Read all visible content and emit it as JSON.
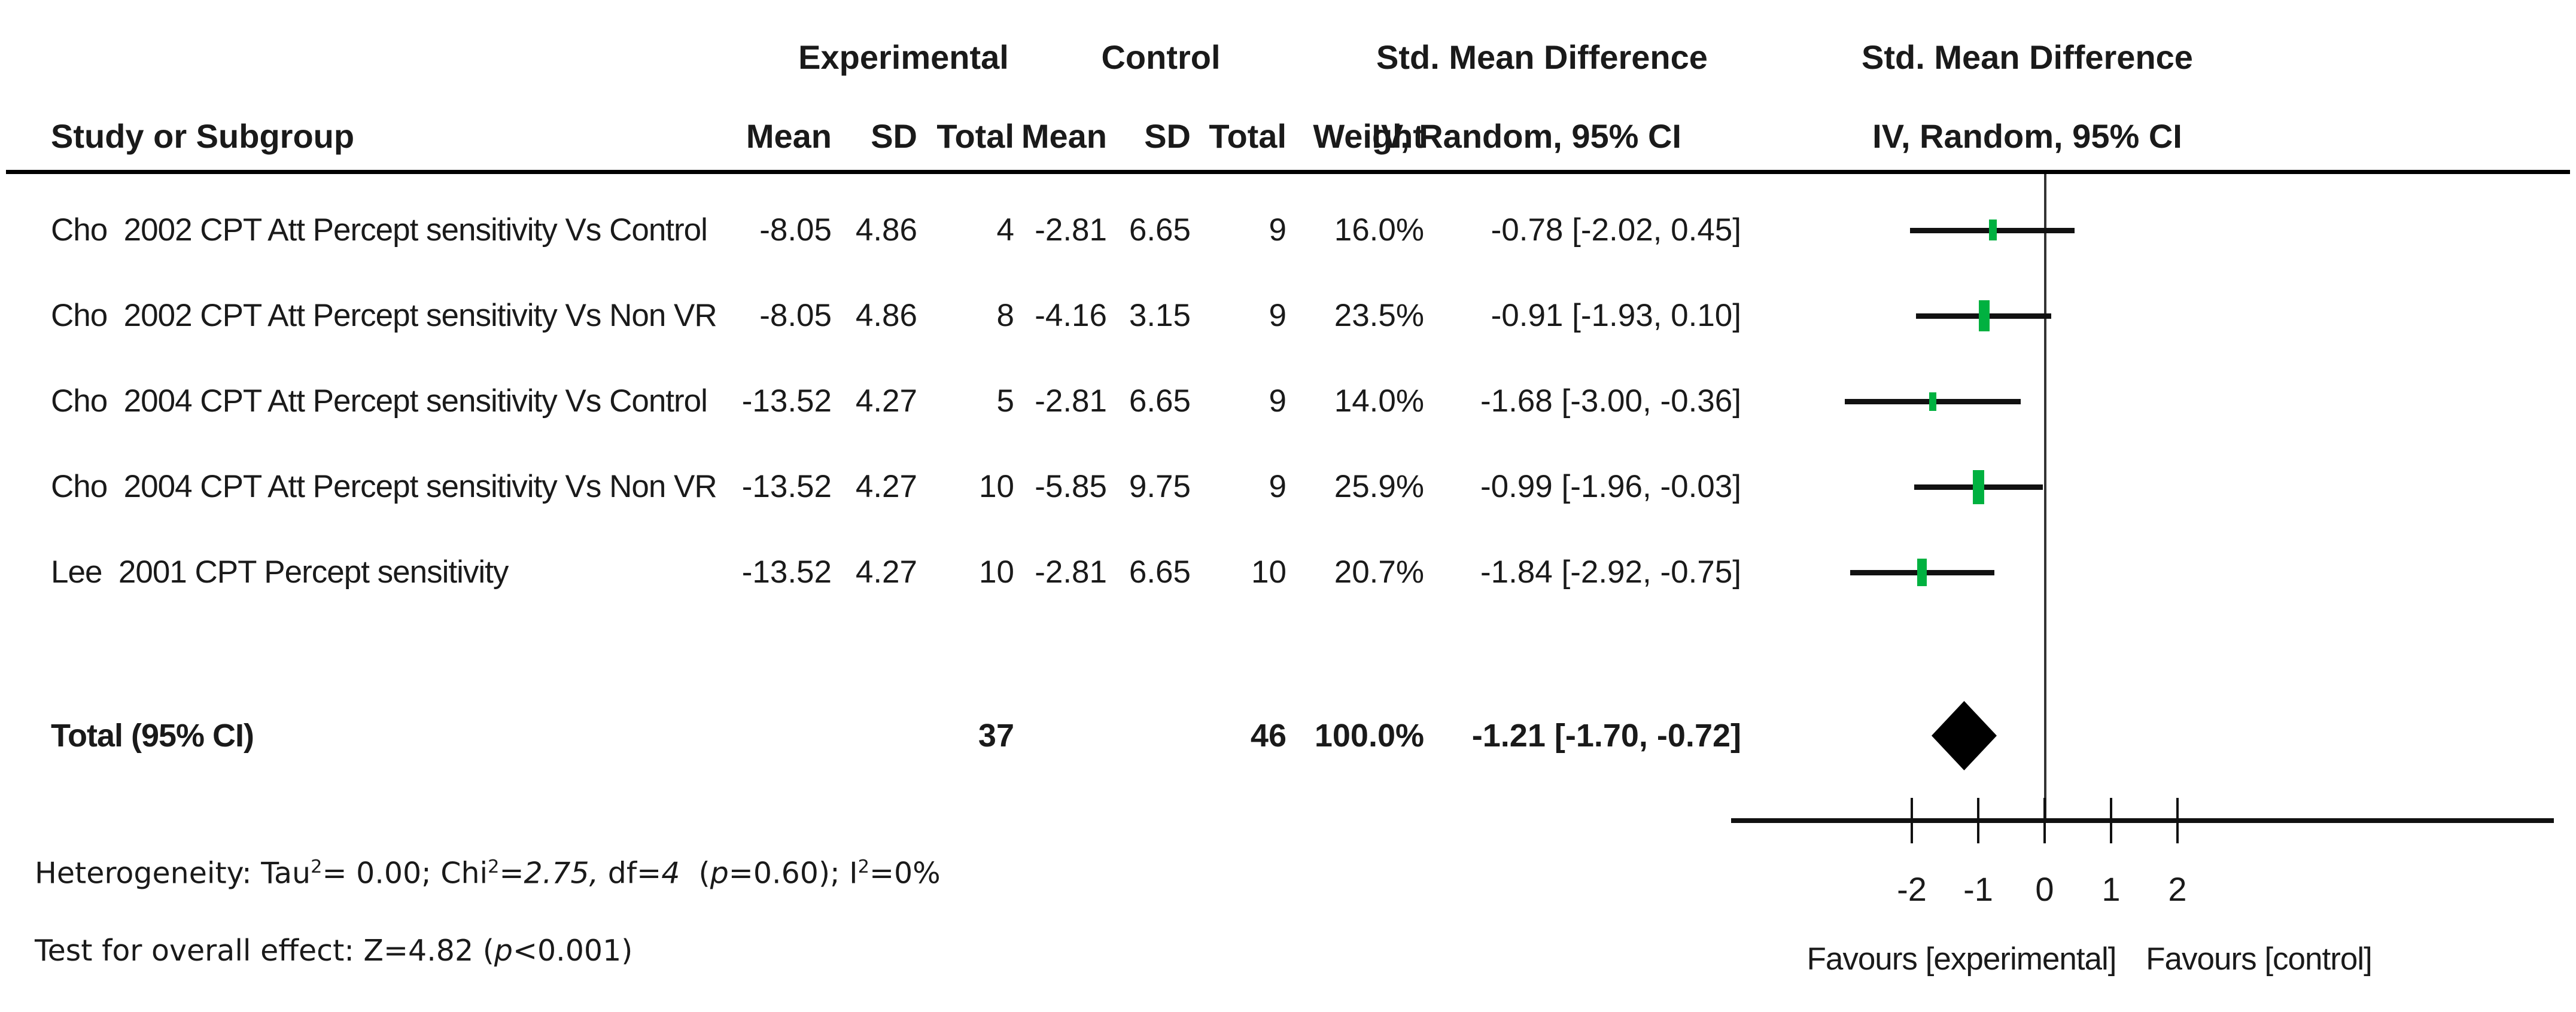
{
  "figure": {
    "group_headers": {
      "experimental": "Experimental",
      "control": "Control",
      "smd": "Std. Mean Difference"
    },
    "column_headers": {
      "study": "Study or Subgroup",
      "mean": "Mean",
      "sd": "SD",
      "total": "Total",
      "mean2": "Mean",
      "sd2": "SD",
      "total2": "Total",
      "weight": "Weight",
      "iv_random": "IV, Random, 95% CI",
      "iv_random_plot": "IV, Random, 95% CI"
    },
    "rows": [
      {
        "study": "Cho  2002 CPT Att Percept sensitivity Vs Control",
        "exp_mean": "-8.05",
        "exp_sd": "4.86",
        "exp_total": "4",
        "ctrl_mean": "-2.81",
        "ctrl_sd": "6.65",
        "ctrl_total": "9",
        "weight": "16.0%",
        "smd_ci": "-0.78 [-2.02, 0.45]"
      },
      {
        "study": "Cho  2002 CPT Att Percept sensitivity Vs Non VR",
        "exp_mean": "-8.05",
        "exp_sd": "4.86",
        "exp_total": "8",
        "ctrl_mean": "-4.16",
        "ctrl_sd": "3.15",
        "ctrl_total": "9",
        "weight": "23.5%",
        "smd_ci": "-0.91 [-1.93, 0.10]"
      },
      {
        "study": "Cho  2004 CPT Att Percept sensitivity Vs Control",
        "exp_mean": "-13.52",
        "exp_sd": "4.27",
        "exp_total": "5",
        "ctrl_mean": "-2.81",
        "ctrl_sd": "6.65",
        "ctrl_total": "9",
        "weight": "14.0%",
        "smd_ci": "-1.68 [-3.00, -0.36]"
      },
      {
        "study": "Cho  2004 CPT Att Percept sensitivity Vs Non VR",
        "exp_mean": "-13.52",
        "exp_sd": "4.27",
        "exp_total": "10",
        "ctrl_mean": "-5.85",
        "ctrl_sd": "9.75",
        "ctrl_total": "9",
        "weight": "25.9%",
        "smd_ci": "-0.99 [-1.96, -0.03]"
      },
      {
        "study": "Lee  2001 CPT Percept sensitivity",
        "exp_mean": "-13.52",
        "exp_sd": "4.27",
        "exp_total": "10",
        "ctrl_mean": "-2.81",
        "ctrl_sd": "6.65",
        "ctrl_total": "10",
        "weight": "20.7%",
        "smd_ci": "-1.84 [-2.92, -0.75]"
      }
    ],
    "total_row": {
      "label": "Total (95% CI)",
      "exp_total": "37",
      "ctrl_total": "46",
      "weight": "100.0%",
      "smd_ci": "-1.21 [-1.70, -0.72]"
    },
    "footer": {
      "heterogeneity_segments": [
        {
          "t": "Heterogeneity: Tau"
        },
        {
          "t": "2",
          "sup": true
        },
        {
          "t": "= 0.00; Chi"
        },
        {
          "t": "2",
          "sup": true
        },
        {
          "t": "="
        },
        {
          "t": "2.75,",
          "italic": true
        },
        {
          "t": " df="
        },
        {
          "t": "4",
          "italic": true
        },
        {
          "t": "  ("
        },
        {
          "t": "p",
          "italic": true
        },
        {
          "t": "=0.60); I"
        },
        {
          "t": "2",
          "sup": true
        },
        {
          "t": "=0%"
        }
      ],
      "overall_effect_segments": [
        {
          "t": "Test for overall effect: Z=4.82 ("
        },
        {
          "t": "p",
          "italic": true
        },
        {
          "t": "<0.001)"
        }
      ]
    },
    "axis": {
      "tick_labels": [
        "-2",
        "-1",
        "0",
        "1",
        "2"
      ],
      "favours_left": "Favours [experimental]",
      "favours_right": "Favours [control]"
    },
    "colors": {
      "marker_green": "#00b140",
      "line_black": "#111111"
    }
  },
  "chart_data": {
    "type": "forest",
    "title": "Std. Mean Difference",
    "model": "IV, Random, 95% CI",
    "studies": [
      "Cho  2002 CPT Att Percept sensitivity Vs Control",
      "Cho  2002 CPT Att Percept sensitivity Vs Non VR",
      "Cho  2004 CPT Att Percept sensitivity Vs Control",
      "Cho  2004 CPT Att Percept sensitivity Vs Non VR",
      "Lee  2001 CPT Percept sensitivity"
    ],
    "estimates": [
      -0.78,
      -0.91,
      -1.68,
      -0.99,
      -1.84
    ],
    "ci_low": [
      -2.02,
      -1.93,
      -3.0,
      -1.96,
      -2.92
    ],
    "ci_high": [
      0.45,
      0.1,
      -0.36,
      -0.03,
      -0.75
    ],
    "weights_pct": [
      16.0,
      23.5,
      14.0,
      25.9,
      20.7
    ],
    "experimental": {
      "means": [
        -8.05,
        -8.05,
        -13.52,
        -13.52,
        -13.52
      ],
      "sds": [
        4.86,
        4.86,
        4.27,
        4.27,
        4.27
      ],
      "totals": [
        4,
        8,
        5,
        10,
        10
      ]
    },
    "control": {
      "means": [
        -2.81,
        -4.16,
        -2.81,
        -5.85,
        -2.81
      ],
      "sds": [
        6.65,
        3.15,
        6.65,
        9.75,
        6.65
      ],
      "totals": [
        9,
        9,
        9,
        9,
        10
      ]
    },
    "total": {
      "label": "Total (95% CI)",
      "estimate": -1.21,
      "ci_low": -1.7,
      "ci_high": -0.72,
      "weight_pct": 100.0,
      "experimental_n": 37,
      "control_n": 46
    },
    "x_ticks": [
      -2,
      -1,
      0,
      1,
      2
    ],
    "xlim": [
      -4.7,
      7.6
    ],
    "xlabel_left": "Favours [experimental]",
    "xlabel_right": "Favours [control]",
    "heterogeneity": "Tau²= 0.00; Chi²=2.75, df=4 (p=0.60); I²=0%",
    "overall_effect": "Z=4.82 (p<0.001)",
    "marker_color": "#00b140",
    "summary_marker": "diamond",
    "grid": false
  }
}
